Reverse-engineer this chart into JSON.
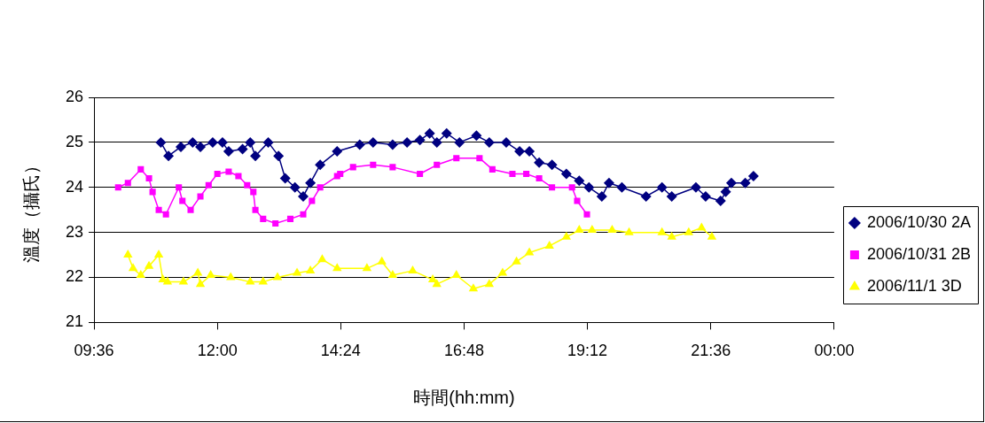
{
  "chart_data": {
    "type": "line",
    "xlabel": "時間(hh:mm)",
    "ylabel": "溫度（攝氏）",
    "xlim": [
      9.6,
      24
    ],
    "xticks": [
      {
        "value": 9.6,
        "label": "09:36"
      },
      {
        "value": 12,
        "label": "12:00"
      },
      {
        "value": 14.4,
        "label": "14:24"
      },
      {
        "value": 16.8,
        "label": "16:48"
      },
      {
        "value": 19.2,
        "label": "19:12"
      },
      {
        "value": 21.6,
        "label": "21:36"
      },
      {
        "value": 24,
        "label": "00:00"
      }
    ],
    "ylim": [
      21,
      26
    ],
    "yticks": [
      21,
      22,
      23,
      24,
      25,
      26
    ],
    "grid": "y",
    "legend": "right",
    "series": [
      {
        "name": "2006/10/30 2A",
        "color": "#000080",
        "marker": "diamond",
        "x": [
          10.9,
          11.05,
          11.29,
          11.52,
          11.67,
          11.91,
          12.1,
          12.22,
          12.49,
          12.64,
          12.74,
          12.99,
          13.19,
          13.32,
          13.51,
          13.67,
          13.81,
          14.0,
          14.33,
          14.77,
          15.03,
          15.41,
          15.69,
          15.94,
          16.13,
          16.27,
          16.46,
          16.71,
          17.04,
          17.29,
          17.62,
          17.88,
          18.07,
          18.26,
          18.51,
          18.79,
          19.04,
          19.23,
          19.48,
          19.62,
          19.87,
          20.34,
          20.65,
          20.84,
          21.31,
          21.5,
          21.79,
          21.89,
          22.0,
          22.27,
          22.43
        ],
        "values": [
          25.0,
          24.7,
          24.9,
          25.0,
          24.9,
          25.0,
          25.0,
          24.8,
          24.85,
          25.0,
          24.7,
          25.0,
          24.7,
          24.2,
          24.0,
          23.8,
          24.1,
          24.5,
          24.8,
          24.95,
          25.0,
          24.95,
          25.0,
          25.05,
          25.2,
          25.0,
          25.2,
          25.0,
          25.15,
          25.0,
          25.0,
          24.8,
          24.8,
          24.55,
          24.5,
          24.3,
          24.15,
          24.0,
          23.8,
          24.1,
          24.0,
          23.8,
          24.0,
          23.8,
          24.0,
          23.8,
          23.7,
          23.9,
          24.1,
          24.1,
          24.25
        ]
      },
      {
        "name": "2006/10/31 2B",
        "color": "#ff00ff",
        "marker": "square",
        "x": [
          10.07,
          10.26,
          10.51,
          10.67,
          10.74,
          10.86,
          11.0,
          11.25,
          11.32,
          11.48,
          11.67,
          11.83,
          12.0,
          12.22,
          12.41,
          12.58,
          12.7,
          12.74,
          12.89,
          13.13,
          13.42,
          13.67,
          13.84,
          14.0,
          14.33,
          14.39,
          14.64,
          15.03,
          15.41,
          15.94,
          16.27,
          16.65,
          17.1,
          17.35,
          17.74,
          18.01,
          18.26,
          18.51,
          18.9,
          19.0,
          19.19
        ],
        "values": [
          24.0,
          24.1,
          24.4,
          24.2,
          23.9,
          23.5,
          23.4,
          24.0,
          23.7,
          23.5,
          23.8,
          24.05,
          24.3,
          24.35,
          24.25,
          24.05,
          23.9,
          23.5,
          23.3,
          23.2,
          23.3,
          23.4,
          23.7,
          24.0,
          24.25,
          24.3,
          24.45,
          24.5,
          24.45,
          24.3,
          24.5,
          24.65,
          24.65,
          24.4,
          24.3,
          24.3,
          24.2,
          24.0,
          24.0,
          23.7,
          23.4
        ]
      },
      {
        "name": "2006/11/1 3D",
        "color": "#ffff00",
        "marker": "triangle",
        "x": [
          10.26,
          10.36,
          10.51,
          10.67,
          10.86,
          10.94,
          11.03,
          11.34,
          11.62,
          11.67,
          11.87,
          12.26,
          12.64,
          12.89,
          13.17,
          13.55,
          13.81,
          14.04,
          14.33,
          14.91,
          15.2,
          15.41,
          15.8,
          16.19,
          16.27,
          16.65,
          16.98,
          17.29,
          17.55,
          17.82,
          18.07,
          18.46,
          18.79,
          19.04,
          19.29,
          19.68,
          20.01,
          20.65,
          20.84,
          21.17,
          21.42,
          21.62
        ],
        "values": [
          22.5,
          22.2,
          22.05,
          22.25,
          22.5,
          21.95,
          21.9,
          21.9,
          22.1,
          21.85,
          22.05,
          22.0,
          21.9,
          21.9,
          22.0,
          22.1,
          22.15,
          22.4,
          22.2,
          22.2,
          22.35,
          22.05,
          22.15,
          21.95,
          21.85,
          22.05,
          21.75,
          21.85,
          22.1,
          22.35,
          22.55,
          22.7,
          22.9,
          23.05,
          23.05,
          23.05,
          23.0,
          23.0,
          22.9,
          23.0,
          23.1,
          22.9
        ]
      }
    ]
  }
}
